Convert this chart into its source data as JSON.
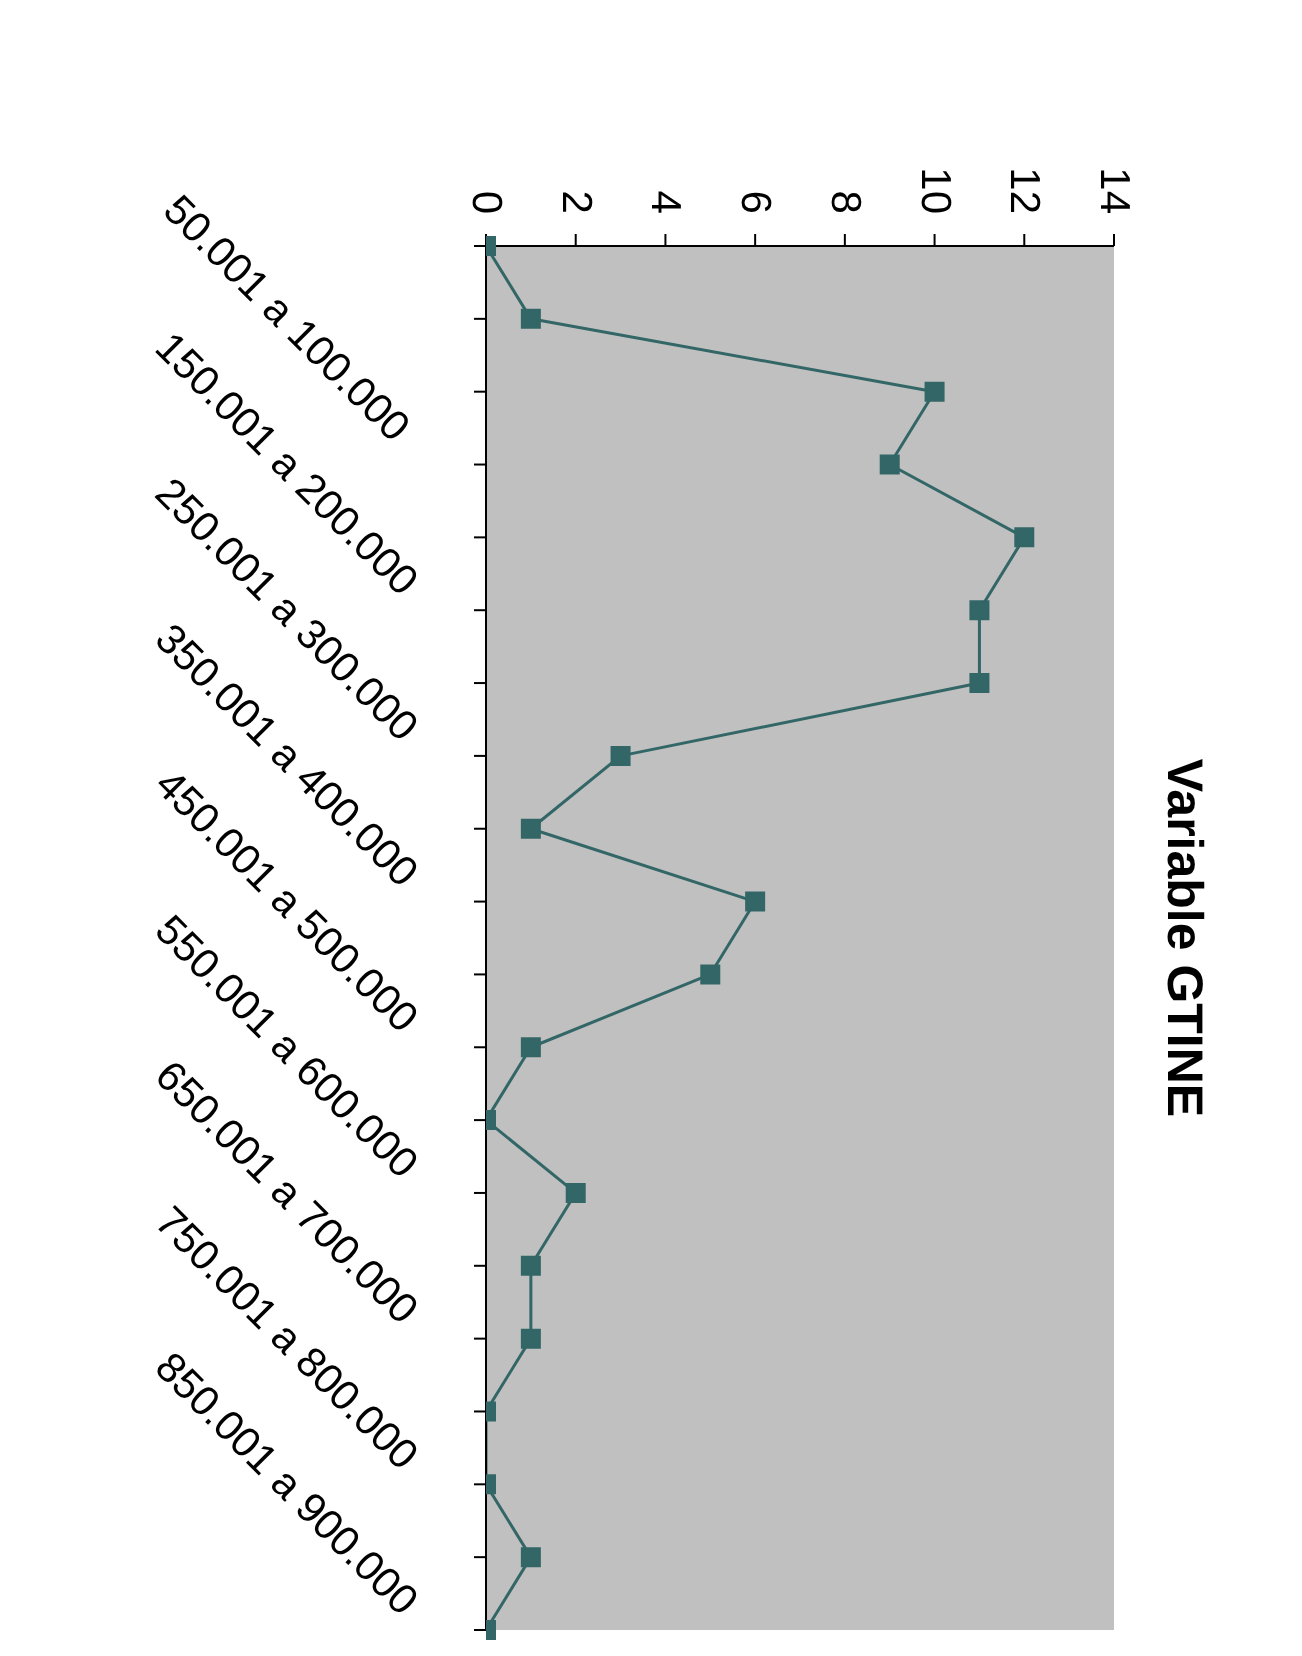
{
  "chart_data": {
    "type": "line",
    "title": "Variable GTINE",
    "categories": [
      null,
      "50.001 a 100.000",
      null,
      "150.001 a 200.000",
      null,
      "250.001 a 300.000",
      null,
      "350.001 a 400.000",
      null,
      "450.001 a 500.000",
      null,
      "550.001 a 600.000",
      null,
      "650.001 a 700.000",
      null,
      "750.001 a 800.000",
      null,
      "850.001 a 900.000",
      null,
      null
    ],
    "orientation": "horizontal",
    "series": [
      {
        "color": "#336666",
        "values": [
          0,
          1,
          10,
          9,
          12,
          11,
          11,
          3,
          1,
          6,
          5,
          1,
          0,
          2,
          1,
          1,
          0,
          0,
          1,
          0
        ]
      }
    ],
    "xlim": [
      0,
      14
    ],
    "xticks": [
      0,
      2,
      4,
      6,
      8,
      10,
      12,
      14
    ],
    "grid": false,
    "legend": false,
    "marker": "square",
    "line_style": "solid"
  }
}
